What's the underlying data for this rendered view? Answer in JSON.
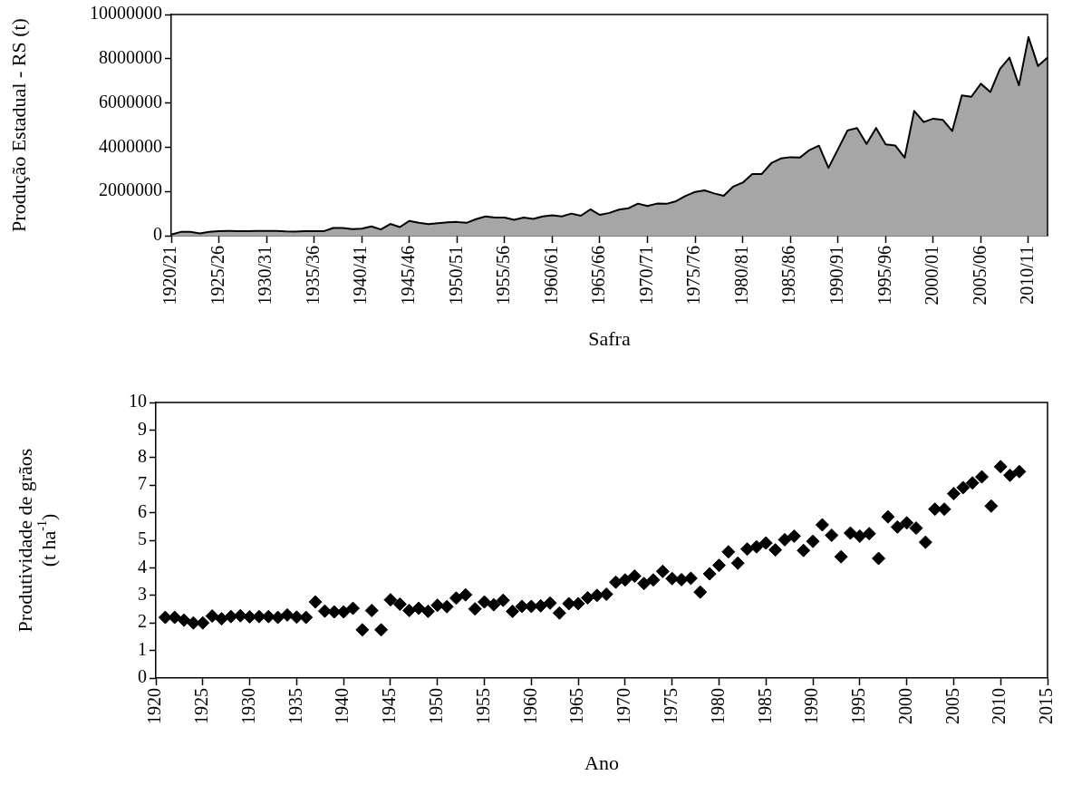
{
  "chart_data": [
    {
      "type": "area",
      "xlabel": "Safra",
      "ylabel": "Produção Estadual - RS (t)",
      "categories": [
        "1920/21",
        null,
        null,
        null,
        null,
        "1925/26",
        null,
        null,
        null,
        null,
        "1930/31",
        null,
        null,
        null,
        null,
        "1935/36",
        null,
        null,
        null,
        null,
        "1940/41",
        null,
        null,
        null,
        null,
        "1945/46",
        null,
        null,
        null,
        null,
        "1950/51",
        null,
        null,
        null,
        null,
        "1955/56",
        null,
        null,
        null,
        null,
        "1960/61",
        null,
        null,
        null,
        null,
        "1965/66",
        null,
        null,
        null,
        null,
        "1970/71",
        null,
        null,
        null,
        null,
        "1975/76",
        null,
        null,
        null,
        null,
        "1980/81",
        null,
        null,
        null,
        null,
        "1985/86",
        null,
        null,
        null,
        null,
        "1990/91",
        null,
        null,
        null,
        null,
        "1995/96",
        null,
        null,
        null,
        null,
        "2000/01",
        null,
        null,
        null,
        null,
        "2005/06",
        null,
        null,
        null,
        null,
        "2010/11",
        null,
        null
      ],
      "series": [
        {
          "color": "#a6a6a6",
          "values": [
            50000,
            170000,
            170000,
            100000,
            170000,
            200000,
            220000,
            210000,
            210000,
            220000,
            220000,
            220000,
            190000,
            180000,
            200000,
            200000,
            200000,
            350000,
            350000,
            300000,
            320000,
            420000,
            280000,
            530000,
            390000,
            670000,
            580000,
            520000,
            560000,
            600000,
            620000,
            580000,
            750000,
            870000,
            820000,
            820000,
            720000,
            820000,
            760000,
            870000,
            920000,
            870000,
            1000000,
            900000,
            1190000,
            940000,
            1030000,
            1180000,
            1240000,
            1450000,
            1340000,
            1450000,
            1440000,
            1560000,
            1800000,
            1980000,
            2050000,
            1910000,
            1800000,
            2220000,
            2400000,
            2790000,
            2790000,
            3280000,
            3490000,
            3550000,
            3530000,
            3870000,
            4070000,
            3070000,
            3910000,
            4760000,
            4870000,
            4150000,
            4870000,
            4130000,
            4080000,
            3530000,
            5640000,
            5140000,
            5290000,
            5240000,
            4730000,
            6340000,
            6280000,
            6870000,
            6500000,
            7540000,
            8050000,
            6800000,
            8980000,
            7670000,
            8050000
          ]
        }
      ],
      "ylim": [
        0,
        10000000
      ],
      "yticks": [
        0,
        2000000,
        4000000,
        6000000,
        8000000,
        10000000
      ]
    },
    {
      "type": "scatter",
      "xlabel": "Ano",
      "ylabel": "Produtividade de grãos\n(t ha$^{-1}$)",
      "marker": "diamond",
      "series": [
        {
          "color": "#000000",
          "x": [
            1921,
            1922,
            1923,
            1924,
            1925,
            1926,
            1927,
            1928,
            1929,
            1930,
            1931,
            1932,
            1933,
            1934,
            1935,
            1936,
            1937,
            1938,
            1939,
            1940,
            1941,
            1942,
            1943,
            1944,
            1945,
            1946,
            1947,
            1948,
            1949,
            1950,
            1951,
            1952,
            1953,
            1954,
            1955,
            1956,
            1957,
            1958,
            1959,
            1960,
            1961,
            1962,
            1963,
            1964,
            1965,
            1966,
            1967,
            1968,
            1969,
            1970,
            1971,
            1972,
            1973,
            1974,
            1975,
            1976,
            1977,
            1978,
            1979,
            1980,
            1981,
            1982,
            1983,
            1984,
            1985,
            1986,
            1987,
            1988,
            1989,
            1990,
            1991,
            1992,
            1993,
            1994,
            1995,
            1996,
            1997,
            1998,
            1999,
            2000,
            2001,
            2002,
            2003,
            2004,
            2005,
            2006,
            2007,
            2008,
            2009,
            2010,
            2011,
            2012
          ],
          "values": [
            2.2,
            2.2,
            2.1,
            2.0,
            2.0,
            2.25,
            2.15,
            2.23,
            2.26,
            2.22,
            2.23,
            2.23,
            2.2,
            2.29,
            2.21,
            2.2,
            2.76,
            2.43,
            2.4,
            2.4,
            2.53,
            1.75,
            2.45,
            1.75,
            2.84,
            2.68,
            2.45,
            2.53,
            2.42,
            2.64,
            2.59,
            2.9,
            3.02,
            2.51,
            2.76,
            2.66,
            2.82,
            2.42,
            2.6,
            2.6,
            2.62,
            2.72,
            2.36,
            2.7,
            2.7,
            2.91,
            3.0,
            3.04,
            3.48,
            3.56,
            3.7,
            3.43,
            3.56,
            3.87,
            3.61,
            3.57,
            3.62,
            3.12,
            3.78,
            4.09,
            4.58,
            4.17,
            4.68,
            4.76,
            4.9,
            4.65,
            5.02,
            5.15,
            4.63,
            4.96,
            5.56,
            5.18,
            4.4,
            5.26,
            5.15,
            5.24,
            4.34,
            5.85,
            5.48,
            5.63,
            5.44,
            4.93,
            6.13,
            6.13,
            6.69,
            6.91,
            7.08,
            7.3,
            6.24,
            7.67,
            7.36,
            7.49
          ]
        }
      ],
      "xlim": [
        1920,
        2015
      ],
      "xticks": [
        1920,
        1925,
        1930,
        1935,
        1940,
        1945,
        1950,
        1955,
        1960,
        1965,
        1970,
        1975,
        1980,
        1985,
        1990,
        1995,
        2000,
        2005,
        2010,
        2015
      ],
      "ylim": [
        0,
        10
      ],
      "yticks": [
        0,
        1,
        2,
        3,
        4,
        5,
        6,
        7,
        8,
        9,
        10
      ]
    }
  ]
}
